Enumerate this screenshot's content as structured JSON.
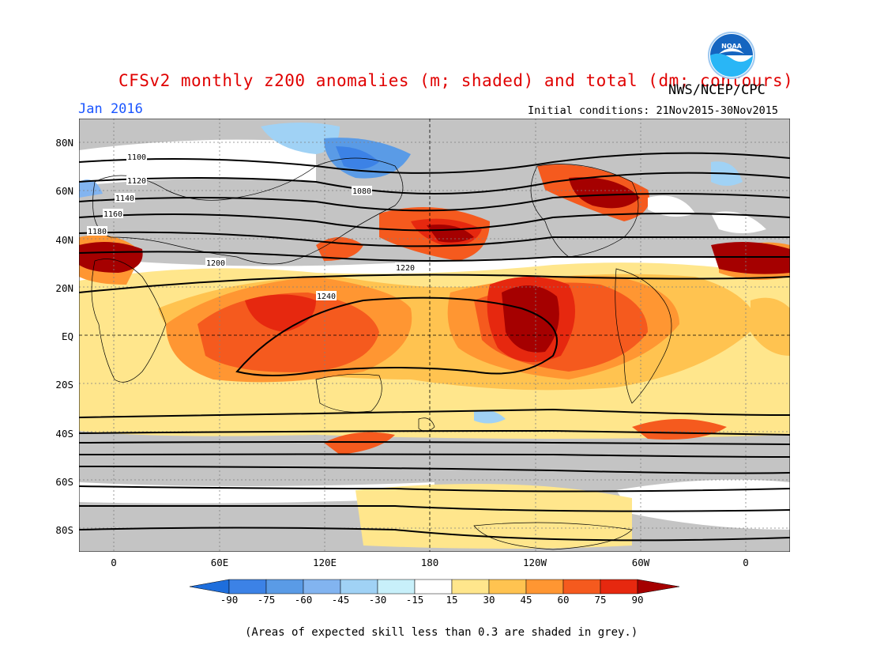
{
  "header": {
    "title": "CFSv2 monthly z200 anomalies (m; shaded) and total (dm; contours)",
    "agency": "NWS/NCEP/CPC",
    "month": "Jan 2016",
    "initial_conditions": "Initial conditions: 21Nov2015-30Nov2015"
  },
  "logo": {
    "text": "NOAA",
    "color": "#1565c0"
  },
  "map": {
    "lat_labels": [
      "80N",
      "60N",
      "40N",
      "20N",
      "EQ",
      "20S",
      "40S",
      "60S",
      "80S"
    ],
    "lon_labels": [
      "0",
      "60E",
      "120E",
      "180",
      "120W",
      "60W",
      "0"
    ],
    "contours": [
      {
        "label": "1080"
      },
      {
        "label": "1100"
      },
      {
        "label": "1120"
      },
      {
        "label": "1140"
      },
      {
        "label": "1160"
      },
      {
        "label": "1180"
      },
      {
        "label": "1200"
      },
      {
        "label": "1220"
      },
      {
        "label": "1240"
      }
    ],
    "grey_meaning": "skill < 0.3"
  },
  "colorbar": {
    "ticks": [
      "-90",
      "-75",
      "-60",
      "-45",
      "-30",
      "-15",
      "15",
      "30",
      "45",
      "60",
      "75",
      "90"
    ],
    "colors": [
      "#1e6edc",
      "#3c82e6",
      "#5a9be6",
      "#82b4f0",
      "#a0d2f5",
      "#c8f0fa",
      "#ffffff",
      "#ffe68c",
      "#ffc350",
      "#ff9632",
      "#f55a1e",
      "#e6280f",
      "#a50000"
    ]
  },
  "footnote": "(Areas of expected skill less than 0.3 are shaded in grey.)"
}
